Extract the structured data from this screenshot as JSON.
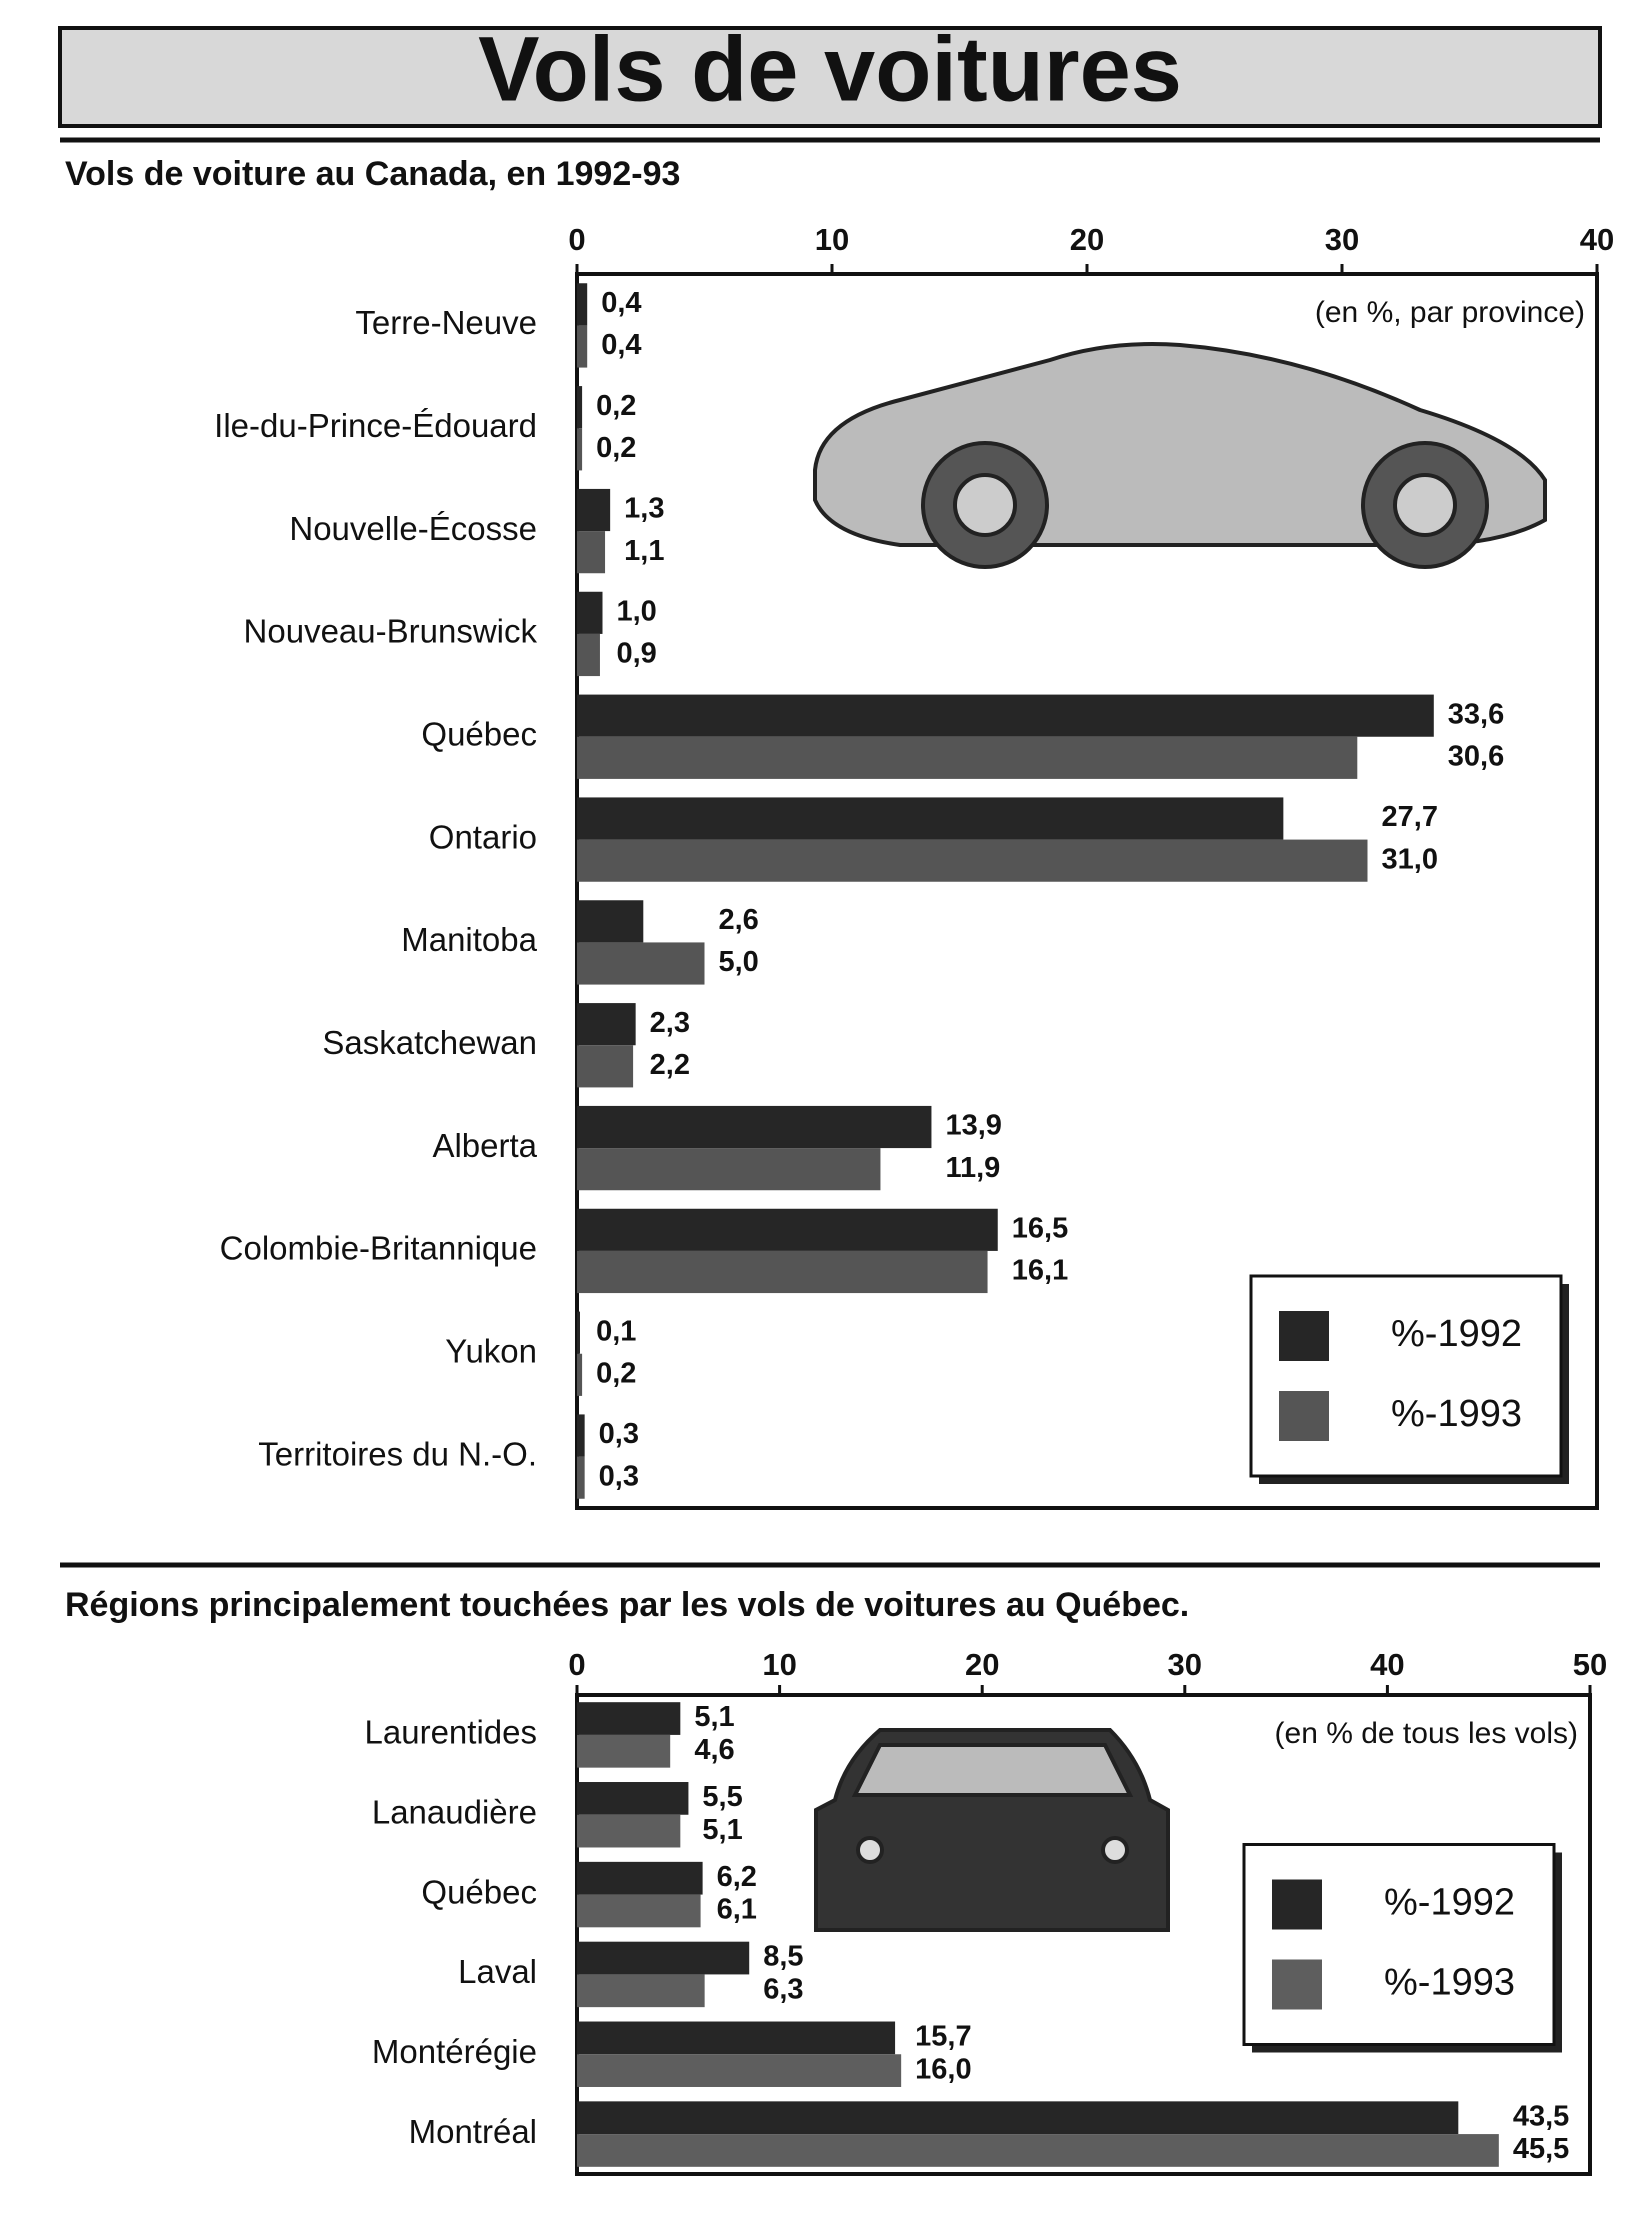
{
  "title": "Vols de voitures",
  "chart_data": [
    {
      "type": "bar",
      "orientation": "horizontal",
      "title": "Vols de voiture au Canada, en 1992-93",
      "annotation": "(en %, par province)",
      "categories": [
        "Terre-Neuve",
        "Ile-du-Prince-Édouard",
        "Nouvelle-Écosse",
        "Nouveau-Brunswick",
        "Québec",
        "Ontario",
        "Manitoba",
        "Saskatchewan",
        "Alberta",
        "Colombie-Britannique",
        "Yukon",
        "Territoires du N.-O."
      ],
      "series": [
        {
          "name": "%-1992",
          "color": "#262626",
          "values": [
            0.4,
            0.2,
            1.3,
            1.0,
            33.6,
            27.7,
            2.6,
            2.3,
            13.9,
            16.5,
            0.1,
            0.3
          ],
          "value_labels": [
            "0,4",
            "0,2",
            "1,3",
            "1,0",
            "33,6",
            "27,7",
            "2,6",
            "2,3",
            "13,9",
            "16,5",
            "0,1",
            "0,3"
          ]
        },
        {
          "name": "%-1993",
          "color": "#555555",
          "values": [
            0.4,
            0.2,
            1.1,
            0.9,
            30.6,
            31.0,
            5.0,
            2.2,
            11.9,
            16.1,
            0.2,
            0.3
          ],
          "value_labels": [
            "0,4",
            "0,2",
            "1,1",
            "0,9",
            "30,6",
            "31,0",
            "5,0",
            "2,2",
            "11,9",
            "16,1",
            "0,2",
            "0,3"
          ]
        }
      ],
      "xlim": [
        0,
        40
      ],
      "xticks": [
        0,
        10,
        20,
        30,
        40
      ],
      "legend": "lower right"
    },
    {
      "type": "bar",
      "orientation": "horizontal",
      "title": "Régions principalement touchées par les vols de voitures au Québec.",
      "annotation": "(en % de tous les vols)",
      "categories": [
        "Laurentides",
        "Lanaudière",
        "Québec",
        "Laval",
        "Montérégie",
        "Montréal"
      ],
      "series": [
        {
          "name": "%-1992",
          "color": "#262626",
          "values": [
            5.1,
            5.5,
            6.2,
            8.5,
            15.7,
            43.5
          ],
          "value_labels": [
            "5,1",
            "5,5",
            "6,2",
            "8,5",
            "15,7",
            "43,5"
          ]
        },
        {
          "name": "%-1993",
          "color": "#5e5e5e",
          "values": [
            4.6,
            5.1,
            6.1,
            6.3,
            16.0,
            45.5
          ],
          "value_labels": [
            "4,6",
            "5,1",
            "6,1",
            "6,3",
            "16,0",
            "45,5"
          ]
        }
      ],
      "xlim": [
        0,
        50
      ],
      "xticks": [
        0,
        10,
        20,
        30,
        40,
        50
      ],
      "legend": "center right"
    }
  ]
}
